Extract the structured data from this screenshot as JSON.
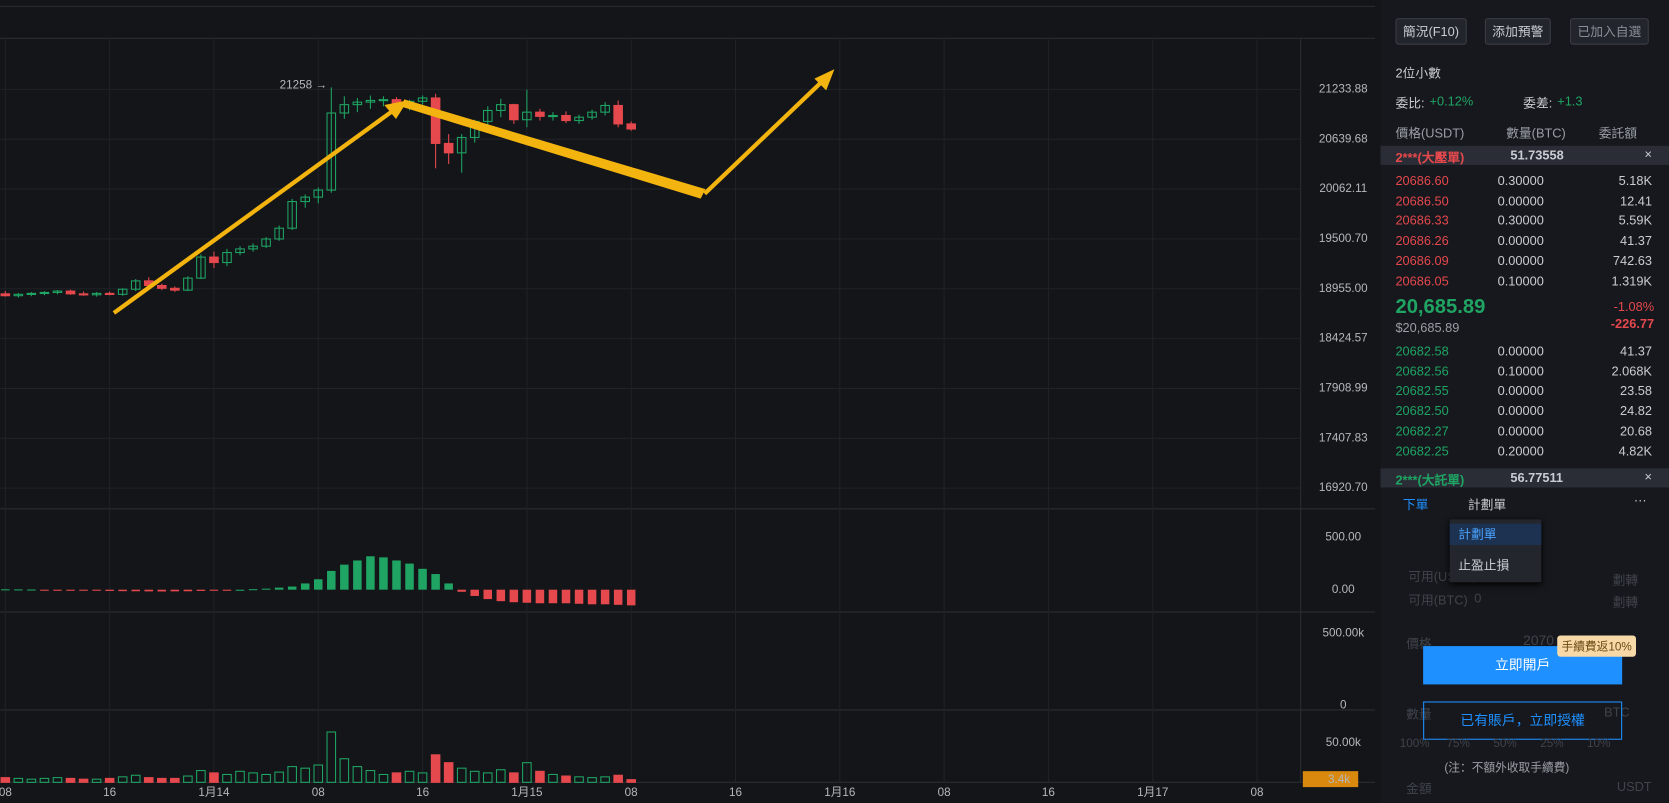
{
  "chart": {
    "type": "candlestick",
    "price_axis": {
      "log_scale": true,
      "ylim": [
        16723,
        21860
      ],
      "ticks": [
        {
          "value": 21233.88,
          "label": "21233.88"
        },
        {
          "value": 20639.68,
          "label": "20639.68"
        },
        {
          "value": 20062.11,
          "label": "20062.11"
        },
        {
          "value": 19500.7,
          "label": "19500.70"
        },
        {
          "value": 18955,
          "label": "18955.00"
        },
        {
          "value": 18424.57,
          "label": "18424.57"
        },
        {
          "value": 17908.99,
          "label": "17908.99"
        },
        {
          "value": 17407.83,
          "label": "17407.83"
        },
        {
          "value": 16920.7,
          "label": "16920.70"
        }
      ]
    },
    "high_label": "21258 →",
    "up_color": "#1fa463",
    "down_color": "#e5484d",
    "candles": [
      [
        18900,
        18930,
        18870,
        18880
      ],
      [
        18880,
        18910,
        18860,
        18895
      ],
      [
        18895,
        18920,
        18875,
        18905
      ],
      [
        18905,
        18930,
        18885,
        18915
      ],
      [
        18915,
        18940,
        18895,
        18930
      ],
      [
        18930,
        18945,
        18890,
        18900
      ],
      [
        18900,
        18925,
        18880,
        18890
      ],
      [
        18890,
        18920,
        18870,
        18905
      ],
      [
        18905,
        18925,
        18885,
        18895
      ],
      [
        18895,
        18960,
        18880,
        18950
      ],
      [
        18950,
        19060,
        18930,
        19040
      ],
      [
        19040,
        19080,
        18960,
        18990
      ],
      [
        18990,
        19010,
        18940,
        18960
      ],
      [
        18960,
        18980,
        18920,
        18940
      ],
      [
        18940,
        19090,
        18930,
        19070
      ],
      [
        19070,
        19330,
        19060,
        19300
      ],
      [
        19300,
        19360,
        19180,
        19240
      ],
      [
        19240,
        19390,
        19200,
        19350
      ],
      [
        19350,
        19420,
        19320,
        19390
      ],
      [
        19390,
        19450,
        19360,
        19420
      ],
      [
        19420,
        19520,
        19400,
        19500
      ],
      [
        19500,
        19650,
        19480,
        19620
      ],
      [
        19620,
        19950,
        19600,
        19920
      ],
      [
        19920,
        20000,
        19850,
        19970
      ],
      [
        19970,
        20080,
        19900,
        20050
      ],
      [
        20050,
        21258,
        20020,
        20950
      ],
      [
        20950,
        21150,
        20880,
        21050
      ],
      [
        21050,
        21130,
        20960,
        21080
      ],
      [
        21080,
        21160,
        21000,
        21100
      ],
      [
        21100,
        21150,
        21030,
        21110
      ],
      [
        21110,
        21140,
        21000,
        21020
      ],
      [
        21020,
        21110,
        20980,
        21090
      ],
      [
        21090,
        21160,
        21050,
        21130
      ],
      [
        21130,
        21180,
        20300,
        20590
      ],
      [
        20590,
        20700,
        20350,
        20480
      ],
      [
        20480,
        20700,
        20250,
        20660
      ],
      [
        20660,
        20870,
        20600,
        20850
      ],
      [
        20850,
        21030,
        20800,
        20980
      ],
      [
        20980,
        21120,
        20900,
        21050
      ],
      [
        21050,
        21060,
        20820,
        20870
      ],
      [
        20870,
        21230,
        20780,
        20960
      ],
      [
        20960,
        21000,
        20860,
        20910
      ],
      [
        20910,
        20960,
        20860,
        20920
      ],
      [
        20920,
        20970,
        20830,
        20860
      ],
      [
        20860,
        20930,
        20820,
        20900
      ],
      [
        20900,
        20990,
        20870,
        20960
      ],
      [
        20960,
        21080,
        20920,
        21040
      ],
      [
        21040,
        21100,
        20780,
        20820
      ],
      [
        20820,
        20850,
        20740,
        20760
      ]
    ],
    "time_labels": [
      "08",
      "16",
      "1月14",
      "08",
      "16",
      "1月15",
      "08",
      "16",
      "1月16",
      "08",
      "16",
      "1月17",
      "08"
    ],
    "macd": {
      "ylim": [
        -214,
        775
      ],
      "ticks": [
        {
          "value": 500,
          "label": "500.00"
        },
        {
          "value": 0,
          "label": "0.00"
        }
      ],
      "values": [
        4,
        3,
        2,
        -3,
        -5,
        -6,
        -8,
        -10,
        -12,
        -14,
        -15,
        -16,
        -17,
        -16,
        -15,
        -12,
        -8,
        -5,
        0,
        5,
        10,
        20,
        30,
        60,
        100,
        180,
        240,
        280,
        320,
        310,
        280,
        250,
        200,
        150,
        60,
        -20,
        -60,
        -90,
        -110,
        -120,
        -125,
        -130,
        -130,
        -130,
        -135,
        -140,
        -140,
        -145,
        -150
      ]
    },
    "indicator2": {
      "ylim": [
        -30000,
        650000
      ],
      "ticks": [
        {
          "value": 500000,
          "label": "500.00k"
        },
        0
      ]
    },
    "volume": {
      "ylim": [
        0,
        92000
      ],
      "ticks": [
        {
          "value": 50000,
          "label": "50.00k"
        }
      ],
      "last": {
        "value": 3400,
        "label": "3.4k"
      },
      "values": [
        6000,
        5000,
        4000,
        5000,
        6000,
        5000,
        4000,
        4000,
        5000,
        7000,
        9000,
        6000,
        5000,
        5000,
        8000,
        15000,
        12000,
        10000,
        14000,
        12000,
        10000,
        13000,
        20000,
        18000,
        22000,
        64000,
        30000,
        20000,
        15000,
        10000,
        12000,
        14000,
        12000,
        35000,
        25000,
        18000,
        14000,
        12000,
        16000,
        12000,
        25000,
        14000,
        10000,
        8000,
        7000,
        6000,
        7000,
        9000,
        3400
      ]
    }
  },
  "panel": {
    "buttons": [
      "簡況(F10)",
      "添加預警",
      "已加入自選"
    ],
    "decimals": "2位小數",
    "ratio_label": "委比:",
    "ratio": "+0.12%",
    "diff_label": "委差:",
    "diff": "+1.3",
    "header": [
      "價格(USDT)",
      "數量(BTC)",
      "委託額"
    ],
    "big_ask": [
      "2***(大壓單)",
      "51.73558"
    ],
    "asks": [
      [
        "20686.60",
        "0.30000",
        "5.18K"
      ],
      [
        "20686.50",
        "0.00000",
        "12.41"
      ],
      [
        "20686.33",
        "0.30000",
        "5.59K"
      ],
      [
        "20686.26",
        "0.00000",
        "41.37"
      ],
      [
        "20686.09",
        "0.00000",
        "742.63"
      ],
      [
        "20686.05",
        "0.10000",
        "1.319K"
      ]
    ],
    "last": {
      "price": "20,685.89",
      "usd": "$20,685.89",
      "pct": "-1.08%",
      "chg": "-226.77"
    },
    "bids": [
      [
        "20682.58",
        "0.00000",
        "41.37"
      ],
      [
        "20682.56",
        "0.10000",
        "2.068K"
      ],
      [
        "20682.55",
        "0.00000",
        "23.58"
      ],
      [
        "20682.50",
        "0.00000",
        "24.82"
      ],
      [
        "20682.27",
        "0.00000",
        "20.68"
      ],
      [
        "20682.25",
        "0.20000",
        "4.82K"
      ]
    ],
    "big_bid": [
      "2***(大託單)",
      "56.77511"
    ],
    "tabs": [
      "下單",
      "計劃單"
    ],
    "menu": [
      "計劃單",
      "止盈止損"
    ],
    "form": {
      "avail_usdt": "可用(USDT)",
      "avail_btc": "可用(BTC)",
      "btc_value": "0",
      "transfer": "劃轉",
      "price": "價格",
      "price_value": "2070",
      "qty": "數量",
      "unit_btc": "BTC",
      "amount": "金額",
      "unit_usdt": "USDT",
      "percents": [
        "100%",
        "75%",
        "50%",
        "25%",
        "10%"
      ]
    },
    "promo": "手續費返10%",
    "open": "立即開戶",
    "auth": "已有賬戶，立即授權",
    "note": "(注：不額外收取手續費)"
  }
}
